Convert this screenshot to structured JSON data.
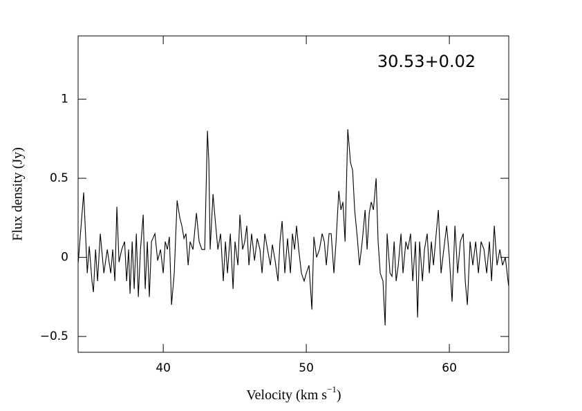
{
  "chart_data": {
    "type": "line",
    "annotation": "30.53+0.02",
    "xlabel": [
      "Velocity (km s",
      "−1",
      ")"
    ],
    "ylabel": "Flux density (Jy)",
    "xlim": [
      34.05,
      64.15
    ],
    "ylim": [
      -0.6,
      1.4
    ],
    "xticks": [
      40,
      50,
      60
    ],
    "yticks": [
      {
        "value": -0.5,
        "label": "−0.5"
      },
      0,
      0.5,
      1
    ],
    "series": [
      {
        "color": "#000000",
        "x": [
          34.06,
          34.44,
          34.69,
          34.83,
          35.02,
          35.12,
          35.27,
          35.41,
          35.6,
          35.85,
          36.09,
          36.33,
          36.47,
          36.62,
          36.76,
          36.91,
          37.1,
          37.3,
          37.44,
          37.58,
          37.68,
          37.83,
          37.97,
          38.12,
          38.26,
          38.41,
          38.6,
          38.74,
          38.89,
          39.03,
          39.18,
          39.42,
          39.61,
          39.81,
          40.0,
          40.14,
          40.29,
          40.43,
          40.58,
          40.77,
          40.97,
          41.16,
          41.3,
          41.45,
          41.59,
          41.74,
          41.88,
          42.08,
          42.32,
          42.51,
          42.7,
          42.9,
          43.09,
          43.19,
          43.28,
          43.48,
          43.62,
          43.82,
          44.01,
          44.2,
          44.35,
          44.49,
          44.69,
          44.88,
          45.02,
          45.22,
          45.36,
          45.55,
          45.7,
          45.84,
          45.99,
          46.18,
          46.38,
          46.57,
          46.76,
          46.91,
          47.1,
          47.29,
          47.49,
          47.63,
          47.82,
          48.02,
          48.16,
          48.31,
          48.5,
          48.69,
          48.89,
          49.03,
          49.18,
          49.32,
          49.47,
          49.66,
          49.85,
          50.0,
          50.19,
          50.39,
          50.53,
          50.72,
          50.92,
          51.11,
          51.26,
          51.4,
          51.59,
          51.74,
          51.93,
          52.08,
          52.27,
          52.42,
          52.56,
          52.71,
          52.9,
          53.09,
          53.24,
          53.38,
          53.57,
          53.72,
          53.91,
          54.11,
          54.25,
          54.4,
          54.54,
          54.69,
          54.88,
          55.02,
          55.17,
          55.36,
          55.51,
          55.65,
          55.85,
          55.99,
          56.14,
          56.28,
          56.43,
          56.62,
          56.76,
          56.96,
          57.1,
          57.29,
          57.44,
          57.63,
          57.78,
          57.92,
          58.12,
          58.26,
          58.45,
          58.6,
          58.74,
          58.89,
          59.08,
          59.23,
          59.42,
          59.61,
          59.81,
          60.0,
          60.19,
          60.39,
          60.58,
          60.77,
          60.97,
          61.11,
          61.26,
          61.45,
          61.64,
          61.84,
          62.03,
          62.22,
          62.42,
          62.61,
          62.8,
          62.95,
          63.14,
          63.33,
          63.53,
          63.72,
          63.91,
          64.14
        ],
        "values": [
          -0.03,
          0.41,
          -0.1,
          0.07,
          -0.15,
          -0.22,
          0.05,
          -0.15,
          0.15,
          -0.1,
          0.05,
          -0.1,
          0.05,
          -0.15,
          0.32,
          -0.03,
          0.05,
          0.1,
          -0.15,
          0.05,
          -0.23,
          0.1,
          -0.2,
          0.15,
          -0.25,
          0.05,
          0.27,
          -0.2,
          0.1,
          -0.25,
          0.1,
          0.15,
          -0.02,
          0.05,
          -0.1,
          0.1,
          0.05,
          0.13,
          -0.3,
          -0.1,
          0.36,
          0.25,
          0.2,
          0.12,
          0.15,
          -0.05,
          0.1,
          0.05,
          0.28,
          0.1,
          0.05,
          0.05,
          0.8,
          0.6,
          0.05,
          0.4,
          0.25,
          0.05,
          0.15,
          -0.15,
          0.1,
          -0.1,
          0.15,
          -0.2,
          0.1,
          -0.05,
          0.27,
          0.05,
          0.1,
          0.2,
          -0.05,
          0.15,
          -0.02,
          0.12,
          0.05,
          -0.1,
          0.15,
          0.05,
          -0.05,
          0.08,
          -0.02,
          -0.15,
          0.1,
          0.23,
          -0.1,
          0.12,
          -0.1,
          0.15,
          0.05,
          0.2,
          0.05,
          -0.1,
          -0.15,
          -0.1,
          -0.05,
          -0.33,
          0.13,
          0,
          0.05,
          0.15,
          0.1,
          -0.05,
          0.15,
          0.15,
          -0.1,
          0.1,
          0.42,
          0.3,
          0.35,
          0.1,
          0.81,
          0.6,
          0.55,
          0.3,
          0.12,
          -0.05,
          0.1,
          0.3,
          0.05,
          0.28,
          0.35,
          0.3,
          0.5,
          0.1,
          -0.1,
          -0.15,
          -0.43,
          0.15,
          -0.1,
          -0.12,
          0.1,
          -0.15,
          -0.05,
          0.15,
          -0.1,
          0.1,
          0.05,
          0.15,
          -0.15,
          0.1,
          -0.38,
          0.1,
          -0.15,
          0.05,
          0.15,
          -0.1,
          0.1,
          -0.05,
          0.15,
          0.3,
          -0.1,
          0.05,
          0.2,
          0,
          -0.28,
          0.2,
          -0.1,
          0.1,
          0.15,
          -0.15,
          -0.3,
          0.1,
          -0.05,
          0.1,
          -0.1,
          0.1,
          0.05,
          -0.1,
          0.1,
          -0.15,
          0.2,
          -0.05,
          0.05,
          -0.05,
          0,
          -0.18
        ]
      }
    ]
  }
}
